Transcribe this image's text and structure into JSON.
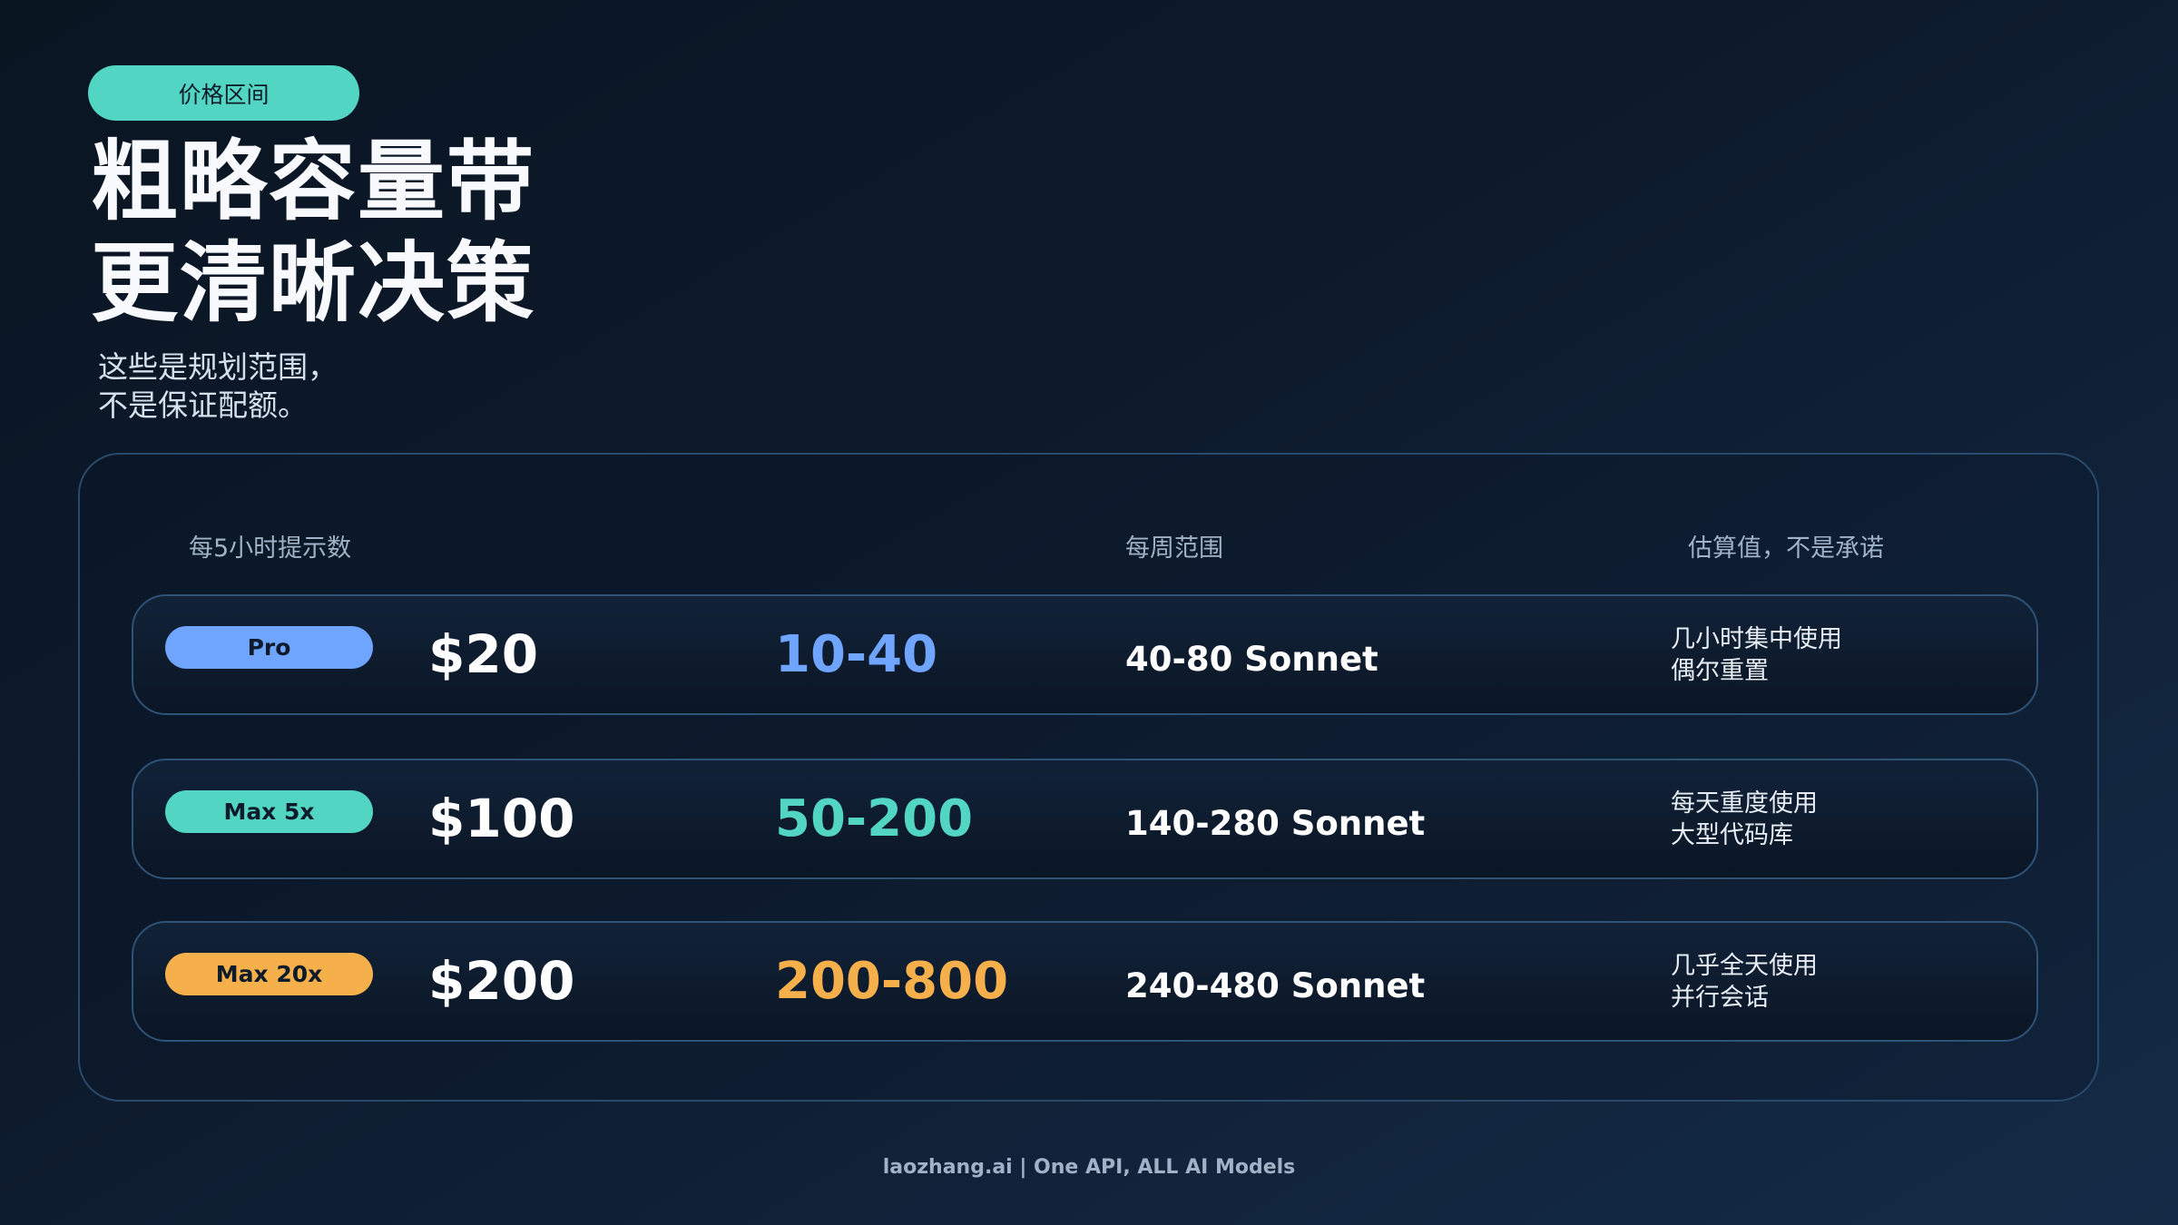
{
  "badge": "价格区间",
  "title": {
    "line1": "粗略容量带",
    "line2": "更清晰决策"
  },
  "subtitle": {
    "line1": "这些是规划范围，",
    "line2": "不是保证配额。"
  },
  "table": {
    "headers": [
      "每5小时提示数",
      "每周范围",
      "估算值，不是承诺"
    ],
    "rows": [
      {
        "plan": "Pro",
        "price": "$20",
        "prompts": "10-40",
        "weekly": "40-80 Sonnet",
        "note1": "几小时集中使用",
        "note2": "偶尔重置",
        "color": "#6fa5ff"
      },
      {
        "plan": "Max 5x",
        "price": "$100",
        "prompts": "50-200",
        "weekly": "140-280 Sonnet",
        "note1": "每天重度使用",
        "note2": "大型代码库",
        "color": "#52d6c3"
      },
      {
        "plan": "Max 20x",
        "price": "$200",
        "prompts": "200-800",
        "weekly": "240-480 Sonnet",
        "note1": "几乎全天使用",
        "note2": "并行会话",
        "color": "#f5b04c"
      }
    ]
  },
  "footer": "laozhang.ai | One API, ALL AI Models"
}
